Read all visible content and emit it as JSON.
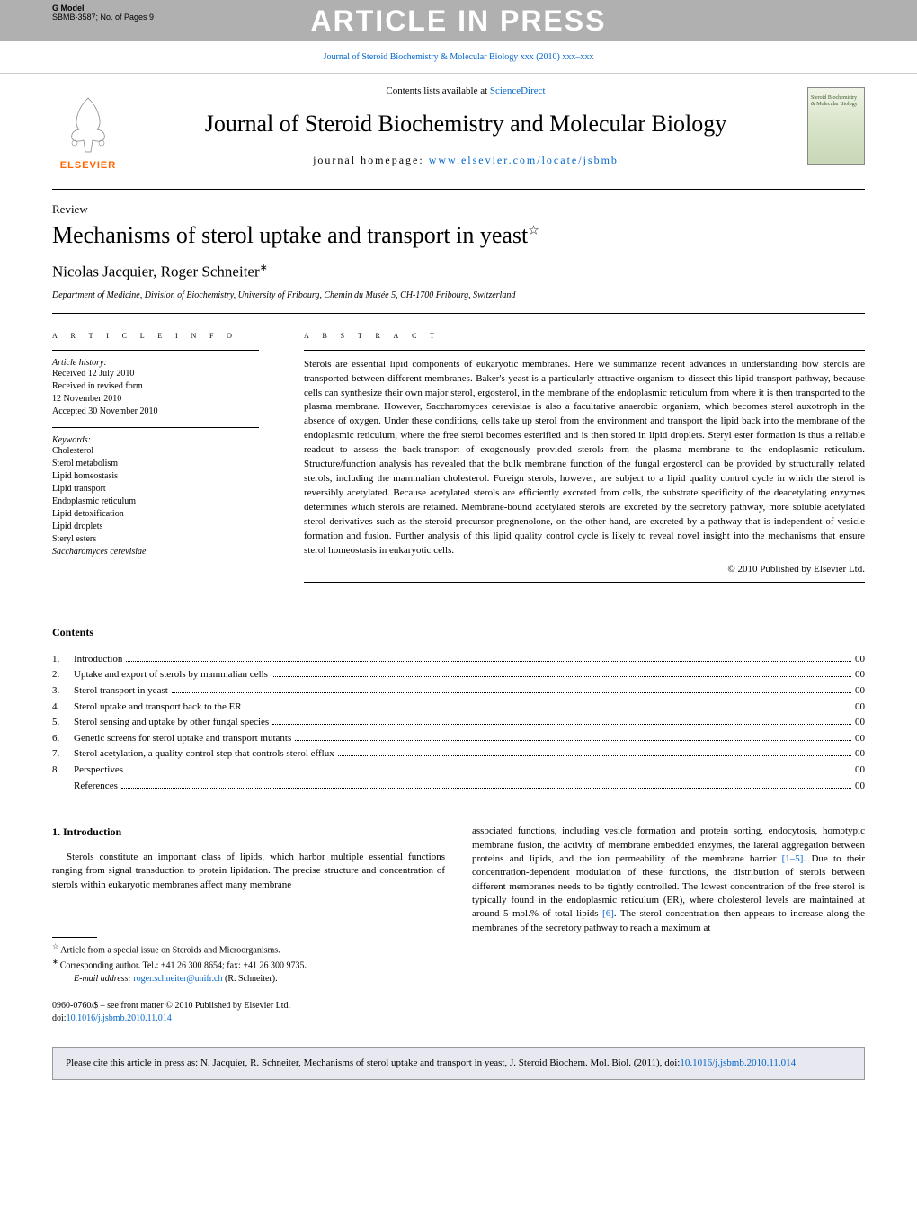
{
  "header": {
    "gmodel": "G Model",
    "gmodel_info": "SBMB-3587;   No. of Pages 9",
    "banner": "ARTICLE IN PRESS"
  },
  "journal": {
    "reference": "Journal of Steroid Biochemistry & Molecular Biology xxx (2010) xxx–xxx",
    "contents_available": "Contents lists available at ",
    "sciencedirect": "ScienceDirect",
    "name": "Journal of Steroid Biochemistry and Molecular Biology",
    "homepage_label": "journal homepage: ",
    "homepage_url": "www.elsevier.com/locate/jsbmb",
    "elsevier": "ELSEVIER",
    "cover_text": "Steroid Biochemistry & Molecular Biology"
  },
  "article": {
    "type": "Review",
    "title": "Mechanisms of sterol uptake and transport in yeast",
    "star": "☆",
    "authors": "Nicolas Jacquier, Roger Schneiter",
    "corr_mark": "∗",
    "affiliation": "Department of Medicine, Division of Biochemistry, University of Fribourg, Chemin du Musée 5, CH-1700 Fribourg, Switzerland"
  },
  "info": {
    "header": "a r t i c l e   i n f o",
    "history_label": "Article history:",
    "received": "Received 12 July 2010",
    "revised": "Received in revised form",
    "revised_date": "12 November 2010",
    "accepted": "Accepted 30 November 2010",
    "keywords_label": "Keywords:",
    "keywords": [
      "Cholesterol",
      "Sterol metabolism",
      "Lipid homeostasis",
      "Lipid transport",
      "Endoplasmic reticulum",
      "Lipid detoxification",
      "Lipid droplets",
      "Steryl esters",
      "Saccharomyces cerevisiae"
    ]
  },
  "abstract": {
    "header": "a b s t r a c t",
    "text": "Sterols are essential lipid components of eukaryotic membranes. Here we summarize recent advances in understanding how sterols are transported between different membranes. Baker's yeast is a particularly attractive organism to dissect this lipid transport pathway, because cells can synthesize their own major sterol, ergosterol, in the membrane of the endoplasmic reticulum from where it is then transported to the plasma membrane. However, Saccharomyces cerevisiae is also a facultative anaerobic organism, which becomes sterol auxotroph in the absence of oxygen. Under these conditions, cells take up sterol from the environment and transport the lipid back into the membrane of the endoplasmic reticulum, where the free sterol becomes esterified and is then stored in lipid droplets. Steryl ester formation is thus a reliable readout to assess the back-transport of exogenously provided sterols from the plasma membrane to the endoplasmic reticulum. Structure/function analysis has revealed that the bulk membrane function of the fungal ergosterol can be provided by structurally related sterols, including the mammalian cholesterol. Foreign sterols, however, are subject to a lipid quality control cycle in which the sterol is reversibly acetylated. Because acetylated sterols are efficiently excreted from cells, the substrate specificity of the deacetylating enzymes determines which sterols are retained. Membrane-bound acetylated sterols are excreted by the secretory pathway, more soluble acetylated sterol derivatives such as the steroid precursor pregnenolone, on the other hand, are excreted by a pathway that is independent of vesicle formation and fusion. Further analysis of this lipid quality control cycle is likely to reveal novel insight into the mechanisms that ensure sterol homeostasis in eukaryotic cells.",
    "copyright": "© 2010 Published by Elsevier Ltd."
  },
  "contents": {
    "title": "Contents",
    "items": [
      {
        "num": "1.",
        "title": "Introduction",
        "page": "00"
      },
      {
        "num": "2.",
        "title": "Uptake and export of sterols by mammalian cells",
        "page": "00"
      },
      {
        "num": "3.",
        "title": "Sterol transport in yeast",
        "page": "00"
      },
      {
        "num": "4.",
        "title": "Sterol uptake and transport back to the ER",
        "page": "00"
      },
      {
        "num": "5.",
        "title": "Sterol sensing and uptake by other fungal species",
        "page": "00"
      },
      {
        "num": "6.",
        "title": "Genetic screens for sterol uptake and transport mutants",
        "page": "00"
      },
      {
        "num": "7.",
        "title": "Sterol acetylation, a quality-control step that controls sterol efflux",
        "page": "00"
      },
      {
        "num": "8.",
        "title": "Perspectives",
        "page": "00"
      },
      {
        "num": "",
        "title": "References",
        "page": "00"
      }
    ]
  },
  "body": {
    "section_title": "1.  Introduction",
    "col1": "Sterols constitute an important class of lipids, which harbor multiple essential functions ranging from signal transduction to protein lipidation. The precise structure and concentration of sterols within eukaryotic membranes affect many membrane",
    "col2_a": "associated functions, including vesicle formation and protein sorting, endocytosis, homotypic membrane fusion, the activity of membrane embedded enzymes, the lateral aggregation between proteins and lipids, and the ion permeability of the membrane barrier ",
    "col2_ref1": "[1–5]",
    "col2_b": ". Due to their concentration-dependent modulation of these functions, the distribution of sterols between different membranes needs to be tightly controlled. The lowest concentration of the free sterol is typically found in the endoplasmic reticulum (ER), where cholesterol levels are maintained at around 5 mol.% of total lipids ",
    "col2_ref2": "[6]",
    "col2_c": ". The sterol concentration then appears to increase along the membranes of the secretory pathway to reach a maximum at"
  },
  "footnotes": {
    "star_note": "Article from a special issue on Steroids and Microorganisms.",
    "corr_note": "Corresponding author. Tel.: +41 26 300 8654; fax: +41 26 300 9735.",
    "email_label": "E-mail address: ",
    "email": "roger.schneiter@unifr.ch",
    "email_suffix": " (R. Schneiter).",
    "issn": "0960-0760/$ – see front matter © 2010 Published by Elsevier Ltd.",
    "doi_label": "doi:",
    "doi": "10.1016/j.jsbmb.2010.11.014"
  },
  "citation": {
    "text": "Please cite this article in press as: N. Jacquier, R. Schneiter, Mechanisms of sterol uptake and transport in yeast, J. Steroid Biochem. Mol. Biol. (2011), doi:",
    "doi": "10.1016/j.jsbmb.2010.11.014"
  }
}
